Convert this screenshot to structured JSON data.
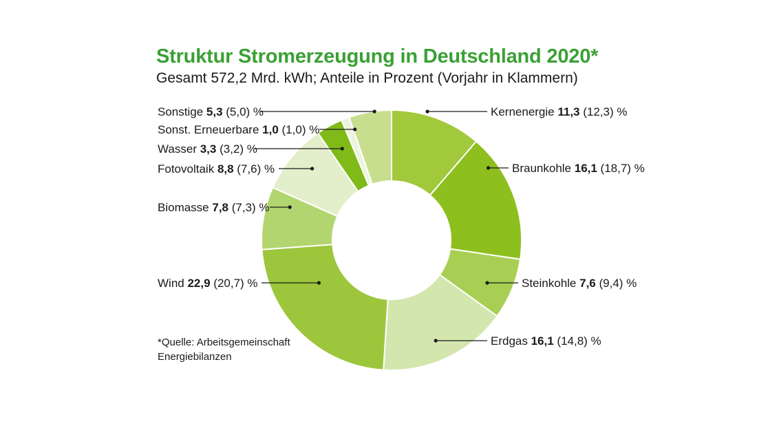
{
  "title": "Struktur Stromerzeugung in Deutschland 2020*",
  "subtitle": "Gesamt 572,2 Mrd. kWh; Anteile in Prozent (Vorjahr in Klammern)",
  "source": {
    "line1": "*Quelle: Arbeitsgemeinschaft",
    "line2": "Energiebilanzen"
  },
  "chart_data": {
    "type": "pie",
    "donut": true,
    "total": "572,2 Mrd. kWh",
    "unit": "%",
    "slices": [
      {
        "name": "Kernenergie",
        "value": 11.3,
        "value_label": "11,3",
        "prev_label": "(12,3)",
        "prev": 12.3,
        "color": "#a2c83b"
      },
      {
        "name": "Braunkohle",
        "value": 16.1,
        "value_label": "16,1",
        "prev_label": "(18,7)",
        "prev": 18.7,
        "color": "#8dbf1e"
      },
      {
        "name": "Steinkohle",
        "value": 7.6,
        "value_label": "7,6",
        "prev_label": "(9,4)",
        "prev": 9.4,
        "color": "#a8cf54"
      },
      {
        "name": "Erdgas",
        "value": 16.1,
        "value_label": "16,1",
        "prev_label": "(14,8)",
        "prev": 14.8,
        "color": "#d3e6ae"
      },
      {
        "name": "Wind",
        "value": 22.9,
        "value_label": "22,9",
        "prev_label": "(20,7)",
        "prev": 20.7,
        "color": "#9dc63c"
      },
      {
        "name": "Biomasse",
        "value": 7.8,
        "value_label": "7,8",
        "prev_label": "(7,3)",
        "prev": 7.3,
        "color": "#b3d56f"
      },
      {
        "name": "Fotovoltaik",
        "value": 8.8,
        "value_label": "8,8",
        "prev_label": "(7,6)",
        "prev": 7.6,
        "color": "#e3eecb"
      },
      {
        "name": "Wasser",
        "value": 3.3,
        "value_label": "3,3",
        "prev_label": "(3,2)",
        "prev": 3.2,
        "color": "#7fba18"
      },
      {
        "name": "Sonst. Erneuerbare",
        "value": 1.0,
        "value_label": "1,0",
        "prev_label": "(1,0)",
        "prev": 1.0,
        "color": "#ecf4dd"
      },
      {
        "name": "Sonstige",
        "value": 5.3,
        "value_label": "5,3",
        "prev_label": "(5,0)",
        "prev": 5.0,
        "color": "#c7de8f"
      }
    ]
  }
}
